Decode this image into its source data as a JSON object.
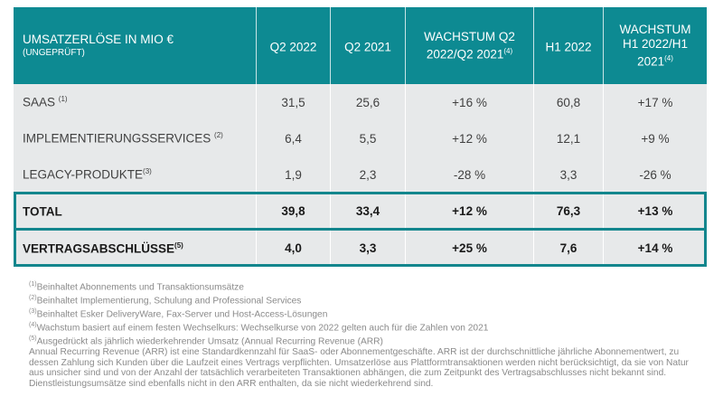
{
  "table": {
    "header": {
      "title": "UMSATZERLÖSE IN MIO €",
      "subtitle": "(UNGEPRÜFT)",
      "columns": [
        {
          "label": "Q2 2022",
          "sup": ""
        },
        {
          "label": "Q2 2021",
          "sup": ""
        },
        {
          "label": "WACHSTUM Q2 2022/Q2 2021",
          "sup": "(4)"
        },
        {
          "label": "H1 2022",
          "sup": ""
        },
        {
          "label": "WACHSTUM H1 2022/H1 2021",
          "sup": "(4)"
        }
      ]
    },
    "rows": [
      {
        "label": "SAAS ",
        "sup": "(1)",
        "values": [
          "31,5",
          "25,6",
          "+16 %",
          "60,8",
          "+17 %"
        ]
      },
      {
        "label": "IMPLEMENTIERUNGSSERVICES ",
        "sup": "(2)",
        "values": [
          "6,4",
          "5,5",
          "+12 %",
          "12,1",
          "+9 %"
        ]
      },
      {
        "label": "LEGACY-PRODUKTE",
        "sup": "(3)",
        "values": [
          "1,9",
          "2,3",
          "-28 %",
          "3,3",
          "-26 %"
        ]
      },
      {
        "label": "TOTAL",
        "sup": "",
        "values": [
          "39,8",
          "33,4",
          "+12 %",
          "76,3",
          "+13 %"
        ]
      },
      {
        "label": "VERTRAGSABSCHLÜSSE",
        "sup": "(5)",
        "values": [
          "4,0",
          "3,3",
          "+25 %",
          "7,6",
          "+14 %"
        ]
      }
    ]
  },
  "footnotes": [
    {
      "sup": "(1)",
      "text": "Beinhaltet Abonnements und Transaktionsumsätze"
    },
    {
      "sup": "(2)",
      "text": "Beinhaltet Implementierung, Schulung and Professional Services"
    },
    {
      "sup": "(3)",
      "text": "Beinhaltet Esker DeliveryWare, Fax-Server und Host-Access-Lösungen"
    },
    {
      "sup": "(4)",
      "text": "Wachstum basiert auf einem festen Wechselkurs: Wechselkurse von 2022 gelten auch für die Zahlen von 2021"
    },
    {
      "sup": "(5)",
      "text": "Ausgedrückt als jährlich wiederkehrender Umsatz (Annual Recurring Revenue (ARR)"
    }
  ],
  "arr_note": "Annual Recurring Revenue (ARR) ist eine Standardkennzahl für SaaS- oder Abonnementgeschäfte. ARR ist der durchschnittliche jährliche Abonnementwert, zu dessen Zahlung sich Kunden über die Laufzeit eines Vertrags verpflichten. Umsatzerlöse aus Plattformtransaktionen werden nicht berücksichtigt, da sie von Natur aus unsicher sind und von der Anzahl der tatsächlich verarbeiteten Transaktionen abhängen, die zum Zeitpunkt des Vertragsabschlusses nicht bekannt sind. Dienstleistungsumsätze sind ebenfalls nicht in den ARR enthalten, da sie nicht wiederkehrend sind.",
  "colors": {
    "header": "#0d8a92",
    "frame": "#13868d",
    "row_bg": "#e7e9ea"
  }
}
